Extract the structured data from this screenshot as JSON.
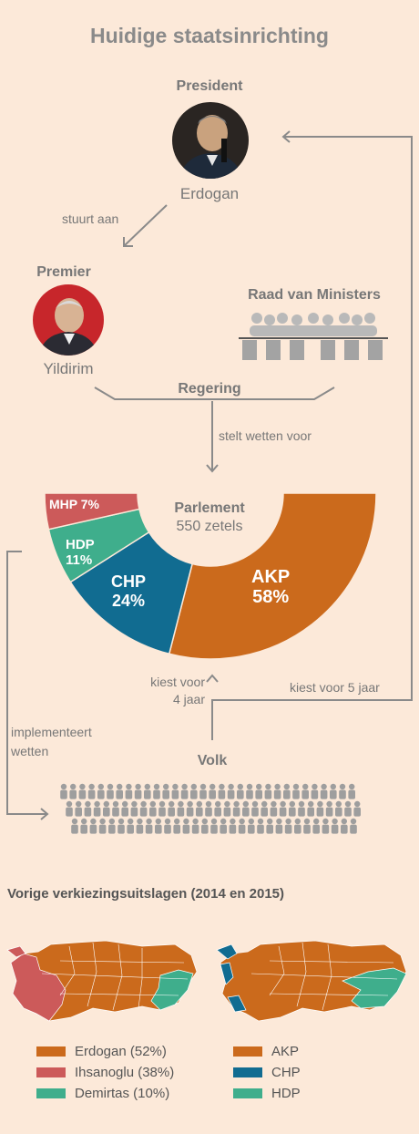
{
  "title": "Huidige staatsinrichting",
  "president": {
    "role": "President",
    "name": "Erdogan"
  },
  "premier": {
    "role": "Premier",
    "name": "Yildirim"
  },
  "cabinet": {
    "label": "Raad van Ministers"
  },
  "arrows": {
    "stuurt_aan": "stuurt aan",
    "stelt_wetten": "stelt wetten voor",
    "kiest_4": [
      "kiest voor",
      "4 jaar"
    ],
    "kiest_5": "kiest voor 5 jaar",
    "implementeert": [
      "implementeert",
      "wetten"
    ]
  },
  "regering": "Regering",
  "volk": "Volk",
  "parliament": {
    "title": "Parlement",
    "subtitle": "550 zetels",
    "chart_data": {
      "type": "pie",
      "series": [
        {
          "name": "AKP",
          "label": "AKP",
          "pct_label": "58%",
          "value": 58,
          "color": "#cb6a1c"
        },
        {
          "name": "CHP",
          "label": "CHP",
          "pct_label": "24%",
          "value": 24,
          "color": "#116c91"
        },
        {
          "name": "HDP",
          "label": "HDP",
          "pct_label": "11%",
          "value": 11,
          "color": "#3fae8c"
        },
        {
          "name": "MHP",
          "label": "MHP 7%",
          "value": 7,
          "color": "#cc5a5a"
        }
      ]
    }
  },
  "previous": {
    "title": "Vorige verkiezingsuitslagen (2014 en 2015)",
    "legend_left": [
      {
        "label": "Erdogan (52%)",
        "color": "#cb6a1c"
      },
      {
        "label": "Ihsanoglu (38%)",
        "color": "#cc5a5a"
      },
      {
        "label": "Demirtas (10%)",
        "color": "#3fae8c"
      }
    ],
    "legend_right": [
      {
        "label": "AKP",
        "color": "#cb6a1c"
      },
      {
        "label": "CHP",
        "color": "#116c91"
      },
      {
        "label": "HDP",
        "color": "#3fae8c"
      }
    ]
  }
}
